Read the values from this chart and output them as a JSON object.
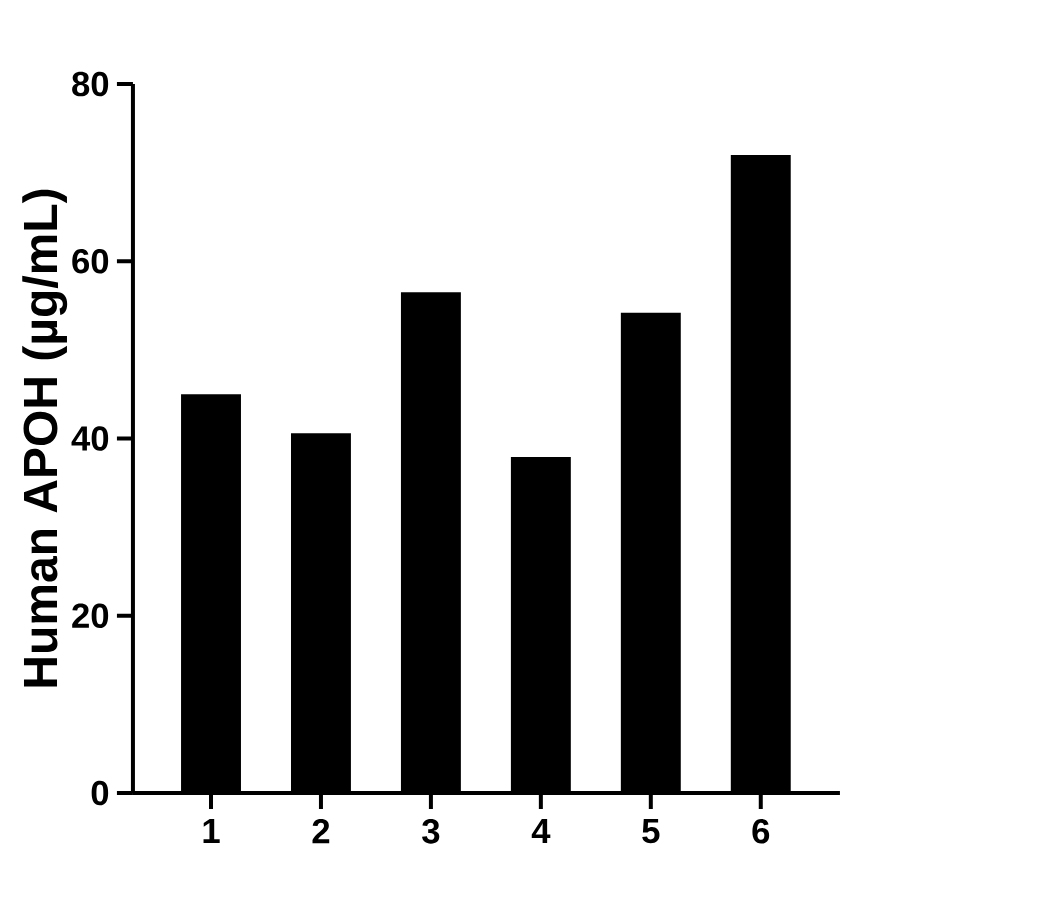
{
  "chart_data": {
    "type": "bar",
    "ylabel": "Human APOH (µg/mL)",
    "categories": [
      "1",
      "2",
      "3",
      "4",
      "5",
      "6"
    ],
    "values": [
      45,
      40.6,
      56.5,
      37.9,
      54.2,
      72
    ],
    "color": "#000000",
    "ylim": [
      0,
      80
    ],
    "yticks": [
      0,
      20,
      40,
      60,
      80
    ]
  }
}
